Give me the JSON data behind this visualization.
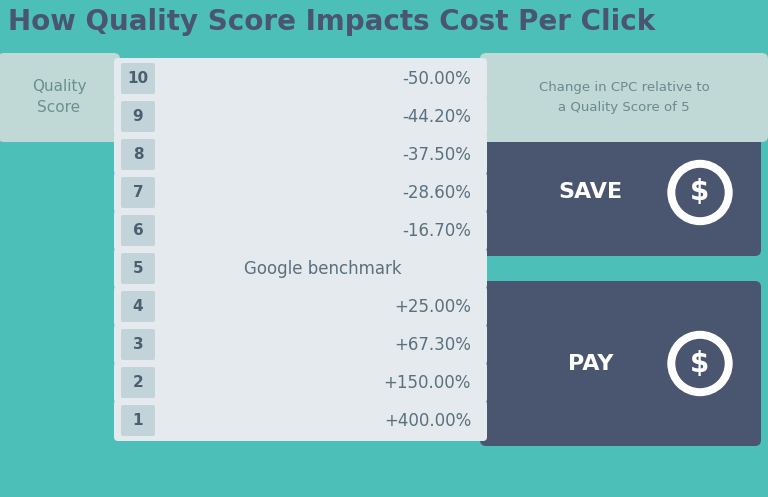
{
  "title": "How Quality Score Impacts Cost Per Click",
  "background_color": "#4BBFB8",
  "title_color": "#4A5570",
  "rows": [
    {
      "score": 10,
      "label": "-50.00%",
      "group": "save_top"
    },
    {
      "score": 9,
      "label": "-44.20%",
      "group": "save_top"
    },
    {
      "score": 8,
      "label": "-37.50%",
      "group": "save_mid"
    },
    {
      "score": 7,
      "label": "-28.60%",
      "group": "save_mid"
    },
    {
      "score": 6,
      "label": "-16.70%",
      "group": "save_mid"
    },
    {
      "score": 5,
      "label": "Google benchmark",
      "group": "benchmark"
    },
    {
      "score": 4,
      "label": "+25.00%",
      "group": "pay_mid"
    },
    {
      "score": 3,
      "label": "+67.30%",
      "group": "pay_mid"
    },
    {
      "score": 2,
      "label": "+150.00%",
      "group": "pay_mid"
    },
    {
      "score": 1,
      "label": "+400.00%",
      "group": "pay_mid"
    }
  ],
  "row_bg_color": "#E4EAED",
  "score_box_color": "#C2D4DA",
  "panel_color": "#4A5570",
  "annotation_box_color": "#C0D8D6",
  "annotation_text": "Change in CPC relative to\na Quality Score of 5",
  "annotation_text_color": "#6A8A90",
  "quality_score_label": "Quality\nScore",
  "quality_score_color": "#6A9090",
  "save_label": "SAVE",
  "pay_label": "PAY",
  "panel_text_color": "#FFFFFF",
  "label_text_color": "#5A7080",
  "score_text_color": "#4A6070"
}
